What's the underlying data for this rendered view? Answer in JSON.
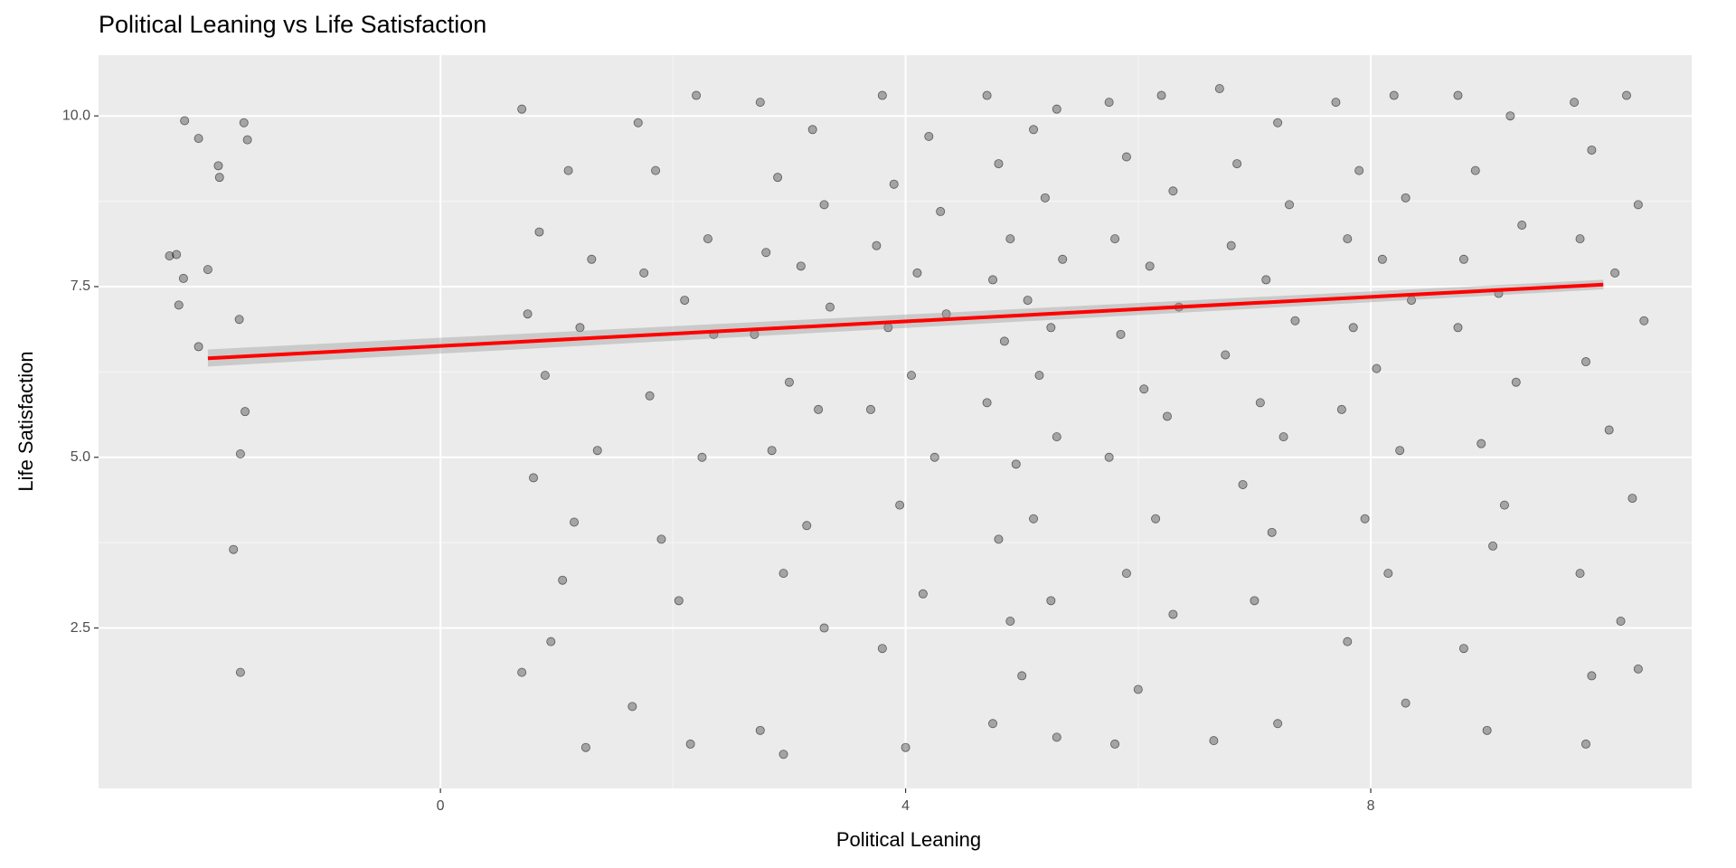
{
  "chart_data": {
    "type": "scatter",
    "title": "Political Leaning vs Life Satisfaction",
    "x_label": "Political Leaning",
    "y_label": "Life Satisfaction",
    "xlim": [
      -2.94,
      10.76
    ],
    "ylim": [
      0.15,
      10.89
    ],
    "xticks": [
      0,
      4,
      8
    ],
    "yticks": [
      2.5,
      {
        "value": 5,
        "label": "5.0"
      },
      7.5,
      {
        "value": 10,
        "label": "10.0"
      }
    ],
    "grid": true,
    "color": "#000000",
    "x": [
      -2.2,
      -2.08,
      -1.91,
      -1.9,
      -1.69,
      -1.66,
      -2.33,
      -2.27,
      -2.0,
      -2.21,
      -2.25,
      -2.08,
      -1.73,
      -1.68,
      -1.72,
      -1.78,
      -1.72,
      0.7,
      1.1,
      0.85,
      1.3,
      0.75,
      1.2,
      0.9,
      1.35,
      0.8,
      1.05,
      0.7,
      1.25,
      0.95,
      1.15,
      1.7,
      2.2,
      1.85,
      2.3,
      1.75,
      2.1,
      2.35,
      1.8,
      2.25,
      1.9,
      2.05,
      2.15,
      1.65,
      2.75,
      3.2,
      2.9,
      3.3,
      2.8,
      3.1,
      3.35,
      2.7,
      3.0,
      3.25,
      2.85,
      3.15,
      2.95,
      3.3,
      2.75,
      2.95,
      3.8,
      4.2,
      3.9,
      4.3,
      3.75,
      4.1,
      4.35,
      3.85,
      4.05,
      3.7,
      4.25,
      3.95,
      4.15,
      3.8,
      4.0,
      4.7,
      5.1,
      5.3,
      4.8,
      5.2,
      4.9,
      5.35,
      4.75,
      5.05,
      5.25,
      4.85,
      5.15,
      4.7,
      5.3,
      4.95,
      5.1,
      4.8,
      5.25,
      4.9,
      5.0,
      4.75,
      5.3,
      5.75,
      6.2,
      5.9,
      6.3,
      5.8,
      6.1,
      6.35,
      5.85,
      6.05,
      6.25,
      5.75,
      6.15,
      5.9,
      6.3,
      6.0,
      5.8,
      6.7,
      7.2,
      6.85,
      7.3,
      6.8,
      7.1,
      7.35,
      6.75,
      7.05,
      7.25,
      6.9,
      7.15,
      7.0,
      7.2,
      6.65,
      7.7,
      8.2,
      7.9,
      8.3,
      7.8,
      8.1,
      8.35,
      7.85,
      8.05,
      7.75,
      8.25,
      7.95,
      8.15,
      7.8,
      8.3,
      8.75,
      9.2,
      8.9,
      9.3,
      8.8,
      9.1,
      8.75,
      9.25,
      8.95,
      9.15,
      9.05,
      8.8,
      9.0,
      9.75,
      10.2,
      9.9,
      10.3,
      9.8,
      10.1,
      10.35,
      9.85,
      10.05,
      10.25,
      9.8,
      10.15,
      9.9,
      10.3,
      9.85
    ],
    "values": [
      9.93,
      9.67,
      9.27,
      9.1,
      9.9,
      9.65,
      7.95,
      7.97,
      7.75,
      7.62,
      7.23,
      6.62,
      7.02,
      5.67,
      5.05,
      3.65,
      1.85,
      10.1,
      9.2,
      8.3,
      7.9,
      7.1,
      6.9,
      6.2,
      5.1,
      4.7,
      3.2,
      1.85,
      0.75,
      2.3,
      4.05,
      9.9,
      10.3,
      9.2,
      8.2,
      7.7,
      7.3,
      6.8,
      5.9,
      5.0,
      3.8,
      2.9,
      0.8,
      1.35,
      10.2,
      9.8,
      9.1,
      8.7,
      8.0,
      7.8,
      7.2,
      6.8,
      6.1,
      5.7,
      5.1,
      4.0,
      3.3,
      2.5,
      1.0,
      0.65,
      10.3,
      9.7,
      9.0,
      8.6,
      8.1,
      7.7,
      7.1,
      6.9,
      6.2,
      5.7,
      5.0,
      4.3,
      3.0,
      2.2,
      0.75,
      10.3,
      9.8,
      10.1,
      9.3,
      8.8,
      8.2,
      7.9,
      7.6,
      7.3,
      6.9,
      6.7,
      6.2,
      5.8,
      5.3,
      4.9,
      4.1,
      3.8,
      2.9,
      2.6,
      1.8,
      1.1,
      0.9,
      10.2,
      10.3,
      9.4,
      8.9,
      8.2,
      7.8,
      7.2,
      6.8,
      6.0,
      5.6,
      5.0,
      4.1,
      3.3,
      2.7,
      1.6,
      0.8,
      10.4,
      9.9,
      9.3,
      8.7,
      8.1,
      7.6,
      7.0,
      6.5,
      5.8,
      5.3,
      4.6,
      3.9,
      2.9,
      1.1,
      0.85,
      10.2,
      10.3,
      9.2,
      8.8,
      8.2,
      7.9,
      7.3,
      6.9,
      6.3,
      5.7,
      5.1,
      4.1,
      3.3,
      2.3,
      1.4,
      10.3,
      10.0,
      9.2,
      8.4,
      7.9,
      7.4,
      6.9,
      6.1,
      5.2,
      4.3,
      3.7,
      2.2,
      1.0,
      10.2,
      10.3,
      9.5,
      8.7,
      8.2,
      7.7,
      7.0,
      6.4,
      5.4,
      4.4,
      3.3,
      2.6,
      1.8,
      1.9,
      0.8
    ],
    "fit": {
      "color": "#ff0000",
      "x": [
        -2,
        10
      ],
      "values": [
        6.45,
        7.53
      ],
      "lower": [
        6.33,
        7.46
      ],
      "upper": [
        6.58,
        7.6
      ]
    }
  }
}
